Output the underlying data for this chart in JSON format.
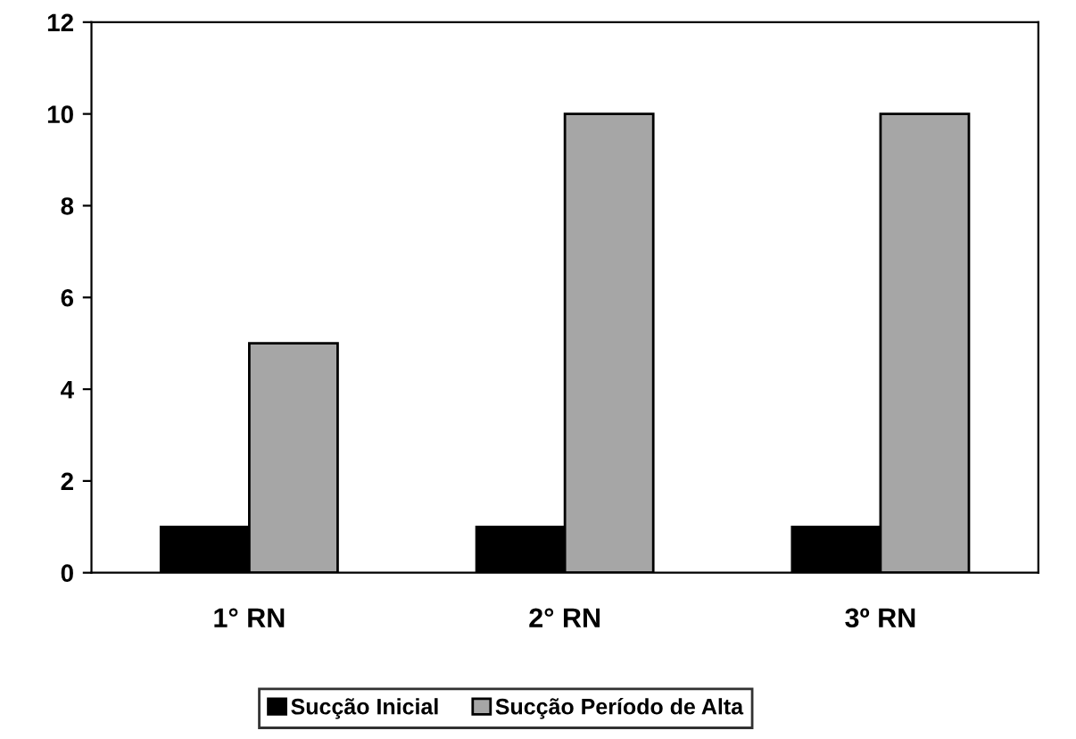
{
  "chart_data": {
    "type": "bar",
    "categories": [
      "1° RN",
      "2° RN",
      "3º RN"
    ],
    "series": [
      {
        "name": "Sucção Inicial",
        "color": "#000000",
        "values": [
          1,
          1,
          1
        ]
      },
      {
        "name": "Sucção Período de Alta",
        "color": "#a6a6a6",
        "values": [
          5,
          10,
          10
        ]
      }
    ],
    "ylim": [
      0,
      12
    ],
    "yticks": [
      0,
      2,
      4,
      6,
      8,
      10,
      12
    ],
    "grid": false,
    "legend": "bottom"
  }
}
